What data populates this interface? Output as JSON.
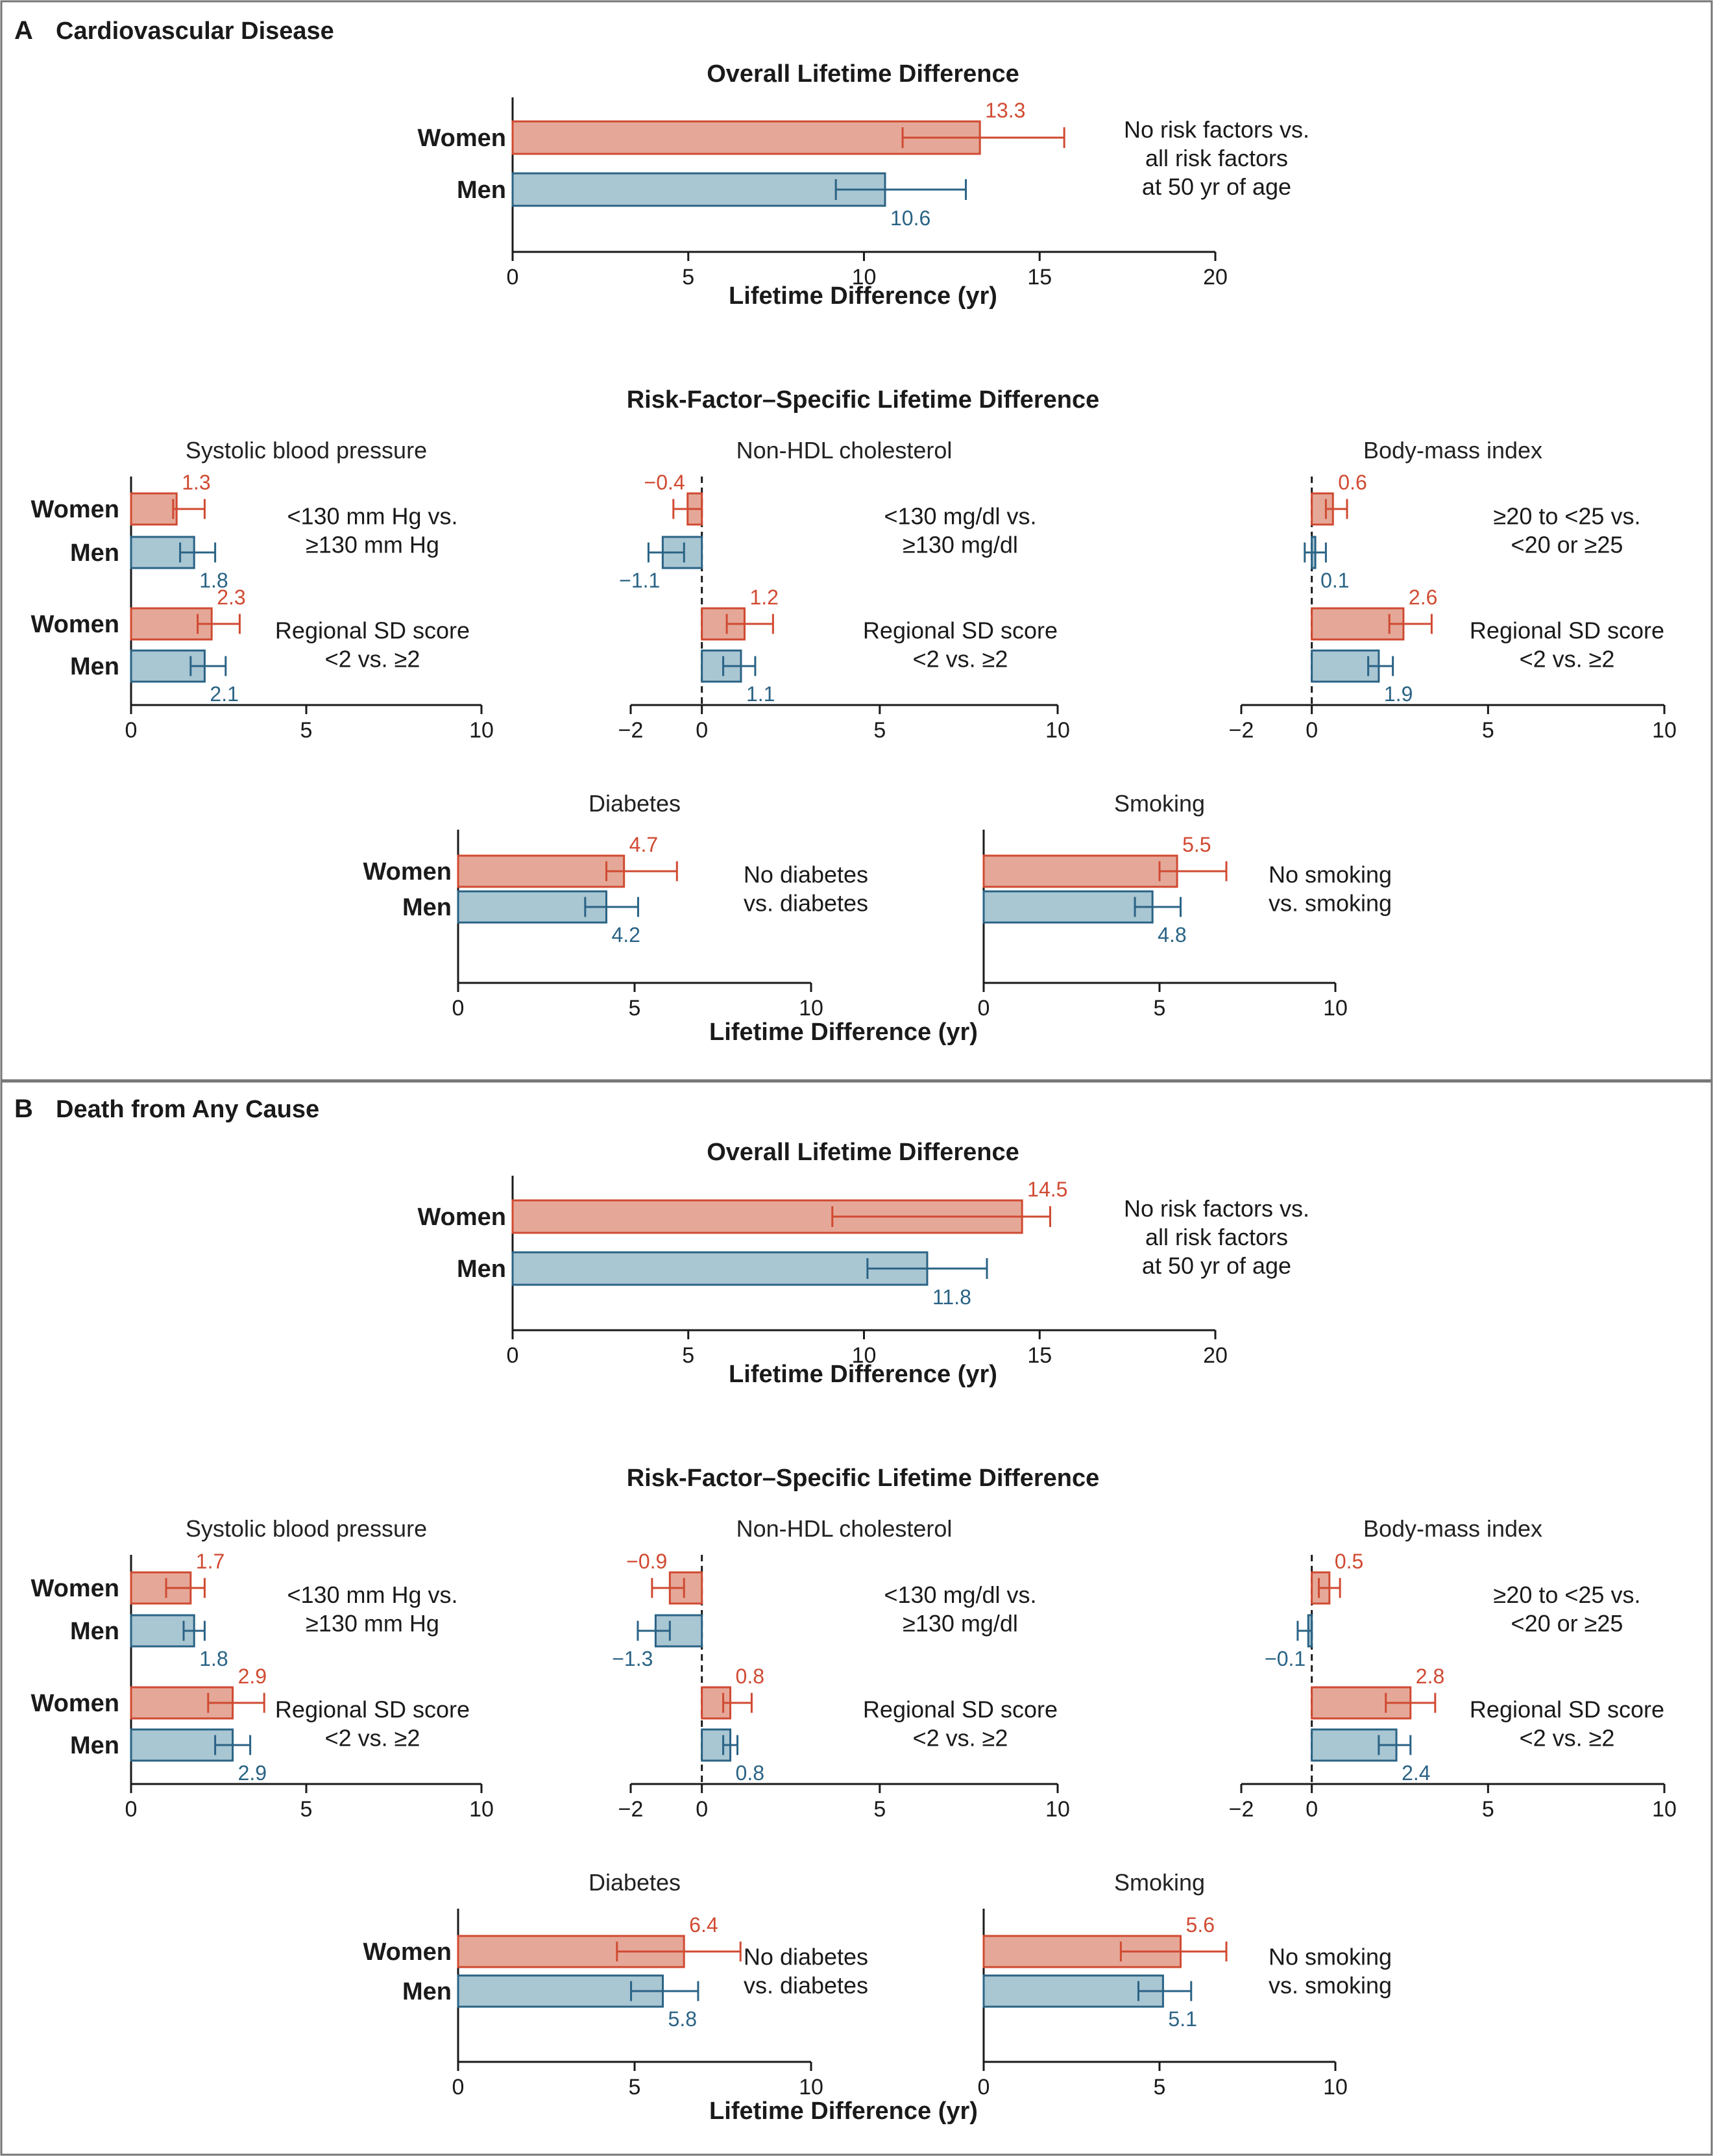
{
  "colors": {
    "women_fill": "#e5a898",
    "women_stroke": "#d04a32",
    "men_fill": "#a9c6d3",
    "men_stroke": "#2a6385",
    "frame": "#777777"
  },
  "chart_data": [
    {
      "panel": "A",
      "panel_title": "Cardiovascular Disease",
      "overall": {
        "type": "bar",
        "title": "Overall Lifetime Difference",
        "xlabel": "Lifetime Difference (yr)",
        "xlim": [
          0,
          20
        ],
        "xticks": [
          0,
          5,
          10,
          15,
          20
        ],
        "categories": [
          "Women",
          "Men"
        ],
        "values": [
          13.3,
          10.6
        ],
        "ci_low": [
          11.1,
          9.2
        ],
        "ci_high": [
          15.7,
          12.9
        ],
        "value_labels": [
          "13.3",
          "10.6"
        ],
        "note": [
          "No risk factors vs.",
          "all risk factors",
          "at 50 yr of age"
        ]
      },
      "specific_title": "Risk-Factor–Specific Lifetime Difference",
      "xlabel": "Lifetime Difference (yr)",
      "subplots": [
        {
          "type": "bar",
          "title": "Systolic blood pressure",
          "xlim": [
            0,
            10
          ],
          "xticks": [
            0,
            5,
            10
          ],
          "zero_line": false,
          "groups": [
            {
              "categories": [
                "Women",
                "Men"
              ],
              "values": [
                1.3,
                1.8
              ],
              "ci_low": [
                1.2,
                1.4
              ],
              "ci_high": [
                2.1,
                2.4
              ],
              "value_labels": [
                "1.3",
                "1.8"
              ],
              "note": [
                "<130 mm Hg vs.",
                "≥130 mm Hg"
              ]
            },
            {
              "categories": [
                "Women",
                "Men"
              ],
              "values": [
                2.3,
                2.1
              ],
              "ci_low": [
                1.9,
                1.7
              ],
              "ci_high": [
                3.1,
                2.7
              ],
              "value_labels": [
                "2.3",
                "2.1"
              ],
              "note": [
                "Regional SD score",
                "<2 vs. ≥2"
              ]
            }
          ]
        },
        {
          "type": "bar",
          "title": "Non-HDL cholesterol",
          "xlim": [
            -2,
            10
          ],
          "xticks": [
            -2,
            0,
            5,
            10
          ],
          "zero_line": true,
          "groups": [
            {
              "categories": [
                "",
                ""
              ],
              "values": [
                -0.4,
                -1.1
              ],
              "ci_low": [
                -0.8,
                -1.5
              ],
              "ci_high": [
                0.0,
                -0.5
              ],
              "value_labels": [
                "−0.4",
                "−1.1"
              ],
              "note": [
                "<130 mg/dl vs.",
                "≥130 mg/dl"
              ]
            },
            {
              "categories": [
                "",
                ""
              ],
              "values": [
                1.2,
                1.1
              ],
              "ci_low": [
                0.7,
                0.6
              ],
              "ci_high": [
                2.0,
                1.5
              ],
              "value_labels": [
                "1.2",
                "1.1"
              ],
              "note": [
                "Regional SD score",
                "<2 vs. ≥2"
              ]
            }
          ]
        },
        {
          "type": "bar",
          "title": "Body-mass index",
          "xlim": [
            -2,
            10
          ],
          "xticks": [
            -2,
            0,
            5,
            10
          ],
          "zero_line": true,
          "groups": [
            {
              "categories": [
                "",
                ""
              ],
              "values": [
                0.6,
                0.1
              ],
              "ci_low": [
                0.4,
                -0.2
              ],
              "ci_high": [
                1.0,
                0.4
              ],
              "value_labels": [
                "0.6",
                "0.1"
              ],
              "note": [
                "≥20 to <25 vs.",
                "<20 or ≥25"
              ]
            },
            {
              "categories": [
                "",
                ""
              ],
              "values": [
                2.6,
                1.9
              ],
              "ci_low": [
                2.2,
                1.6
              ],
              "ci_high": [
                3.4,
                2.3
              ],
              "value_labels": [
                "2.6",
                "1.9"
              ],
              "note": [
                "Regional SD score",
                "<2 vs. ≥2"
              ]
            }
          ]
        },
        {
          "type": "bar",
          "title": "Diabetes",
          "xlim": [
            0,
            10
          ],
          "xticks": [
            0,
            5,
            10
          ],
          "zero_line": false,
          "groups": [
            {
              "categories": [
                "Women",
                "Men"
              ],
              "values": [
                4.7,
                4.2
              ],
              "ci_low": [
                4.2,
                3.6
              ],
              "ci_high": [
                6.2,
                5.1
              ],
              "value_labels": [
                "4.7",
                "4.2"
              ],
              "note": [
                "No diabetes",
                "vs. diabetes"
              ]
            }
          ]
        },
        {
          "type": "bar",
          "title": "Smoking",
          "xlim": [
            0,
            10
          ],
          "xticks": [
            0,
            5,
            10
          ],
          "zero_line": false,
          "groups": [
            {
              "categories": [
                "",
                ""
              ],
              "values": [
                5.5,
                4.8
              ],
              "ci_low": [
                5.0,
                4.3
              ],
              "ci_high": [
                6.9,
                5.6
              ],
              "value_labels": [
                "5.5",
                "4.8"
              ],
              "note": [
                "No smoking",
                "vs. smoking"
              ]
            }
          ]
        }
      ]
    },
    {
      "panel": "B",
      "panel_title": "Death from Any Cause",
      "overall": {
        "type": "bar",
        "title": "Overall Lifetime Difference",
        "xlabel": "Lifetime Difference (yr)",
        "xlim": [
          0,
          20
        ],
        "xticks": [
          0,
          5,
          10,
          15,
          20
        ],
        "categories": [
          "Women",
          "Men"
        ],
        "values": [
          14.5,
          11.8
        ],
        "ci_low": [
          9.1,
          10.1
        ],
        "ci_high": [
          15.3,
          13.5
        ],
        "value_labels": [
          "14.5",
          "11.8"
        ],
        "note": [
          "No risk factors vs.",
          "all risk factors",
          "at 50 yr of age"
        ]
      },
      "specific_title": "Risk-Factor–Specific Lifetime Difference",
      "xlabel": "Lifetime Difference (yr)",
      "subplots": [
        {
          "type": "bar",
          "title": "Systolic blood pressure",
          "xlim": [
            0,
            10
          ],
          "xticks": [
            0,
            5,
            10
          ],
          "zero_line": false,
          "groups": [
            {
              "categories": [
                "Women",
                "Men"
              ],
              "values": [
                1.7,
                1.8
              ],
              "ci_low": [
                1.0,
                1.5
              ],
              "ci_high": [
                2.1,
                2.1
              ],
              "value_labels": [
                "1.7",
                "1.8"
              ],
              "note": [
                "<130 mm Hg vs.",
                "≥130 mm Hg"
              ]
            },
            {
              "categories": [
                "Women",
                "Men"
              ],
              "values": [
                2.9,
                2.9
              ],
              "ci_low": [
                2.2,
                2.4
              ],
              "ci_high": [
                3.8,
                3.4
              ],
              "value_labels": [
                "2.9",
                "2.9"
              ],
              "note": [
                "Regional SD score",
                "<2 vs. ≥2"
              ]
            }
          ]
        },
        {
          "type": "bar",
          "title": "Non-HDL cholesterol",
          "xlim": [
            -2,
            10
          ],
          "xticks": [
            -2,
            0,
            5,
            10
          ],
          "zero_line": true,
          "groups": [
            {
              "categories": [
                "",
                ""
              ],
              "values": [
                -0.9,
                -1.3
              ],
              "ci_low": [
                -1.4,
                -1.8
              ],
              "ci_high": [
                -0.5,
                -0.9
              ],
              "value_labels": [
                "−0.9",
                "−1.3"
              ],
              "note": [
                "<130 mg/dl vs.",
                "≥130 mg/dl"
              ]
            },
            {
              "categories": [
                "",
                ""
              ],
              "values": [
                0.8,
                0.8
              ],
              "ci_low": [
                0.6,
                0.6
              ],
              "ci_high": [
                1.4,
                1.0
              ],
              "value_labels": [
                "0.8",
                "0.8"
              ],
              "note": [
                "Regional SD score",
                "<2 vs. ≥2"
              ]
            }
          ]
        },
        {
          "type": "bar",
          "title": "Body-mass index",
          "xlim": [
            -2,
            10
          ],
          "xticks": [
            -2,
            0,
            5,
            10
          ],
          "zero_line": true,
          "groups": [
            {
              "categories": [
                "",
                ""
              ],
              "values": [
                0.5,
                -0.1
              ],
              "ci_low": [
                0.2,
                -0.4
              ],
              "ci_high": [
                0.8,
                0.0
              ],
              "value_labels": [
                "0.5",
                "−0.1"
              ],
              "note": [
                "≥20 to <25 vs.",
                "<20 or ≥25"
              ]
            },
            {
              "categories": [
                "",
                ""
              ],
              "values": [
                2.8,
                2.4
              ],
              "ci_low": [
                2.1,
                1.9
              ],
              "ci_high": [
                3.5,
                2.8
              ],
              "value_labels": [
                "2.8",
                "2.4"
              ],
              "note": [
                "Regional SD score",
                "<2 vs. ≥2"
              ]
            }
          ]
        },
        {
          "type": "bar",
          "title": "Diabetes",
          "xlim": [
            0,
            10
          ],
          "xticks": [
            0,
            5,
            10
          ],
          "zero_line": false,
          "groups": [
            {
              "categories": [
                "Women",
                "Men"
              ],
              "values": [
                6.4,
                5.8
              ],
              "ci_low": [
                4.5,
                4.9
              ],
              "ci_high": [
                8.0,
                6.8
              ],
              "value_labels": [
                "6.4",
                "5.8"
              ],
              "note": [
                "No diabetes",
                "vs. diabetes"
              ]
            }
          ]
        },
        {
          "type": "bar",
          "title": "Smoking",
          "xlim": [
            0,
            10
          ],
          "xticks": [
            0,
            5,
            10
          ],
          "zero_line": false,
          "groups": [
            {
              "categories": [
                "",
                ""
              ],
              "values": [
                5.6,
                5.1
              ],
              "ci_low": [
                3.9,
                4.4
              ],
              "ci_high": [
                6.9,
                5.9
              ],
              "value_labels": [
                "5.6",
                "5.1"
              ],
              "note": [
                "No smoking",
                "vs. smoking"
              ]
            }
          ]
        }
      ]
    }
  ]
}
